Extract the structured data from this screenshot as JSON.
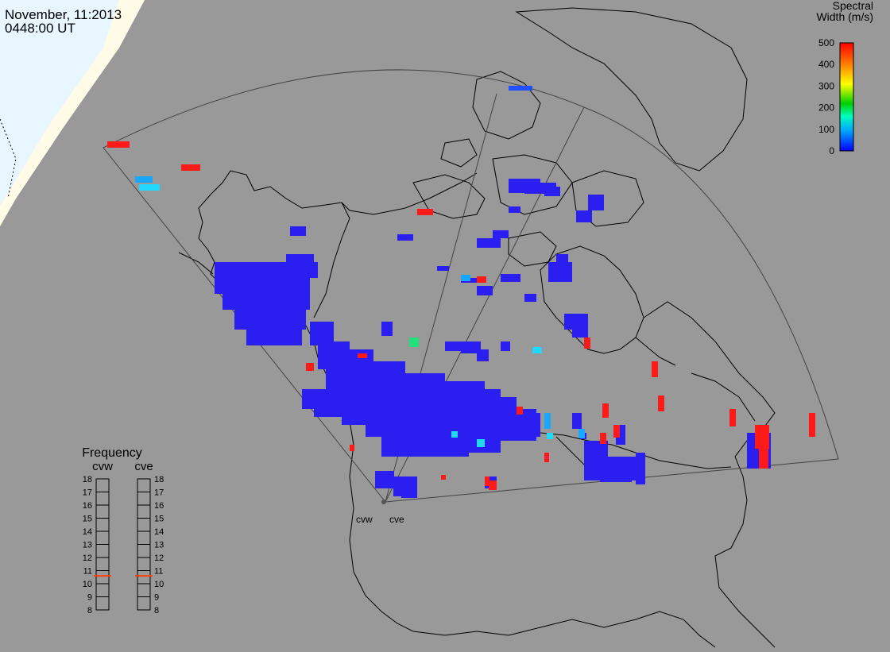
{
  "header": {
    "date": "November, 11:2013",
    "time": "0448:00 UT"
  },
  "colorbar": {
    "title_line1": "Spectral",
    "title_line2": "Width (m/s)",
    "min": 0,
    "max": 500,
    "ticks": [
      "500",
      "400",
      "300",
      "200",
      "100",
      "0"
    ],
    "stops": [
      "#0000ff",
      "#00a0ff",
      "#00ffc0",
      "#00d000",
      "#ffff00",
      "#ff8000",
      "#ff0000"
    ]
  },
  "radars": {
    "site_a": "cvw",
    "site_b": "cve"
  },
  "frequency": {
    "title": "Frequency",
    "col_a": "cvw",
    "col_b": "cve",
    "labels": [
      "18",
      "17",
      "16",
      "15",
      "14",
      "13",
      "12",
      "11",
      "10",
      "9",
      "8"
    ],
    "value_a_mhz": 10.6,
    "value_b_mhz": 10.6,
    "marker_color": "#ff4000"
  },
  "colors": {
    "background": "#999999",
    "night_shade": "#ffffe8",
    "day_zone": "#e8f6ff",
    "coastline": "#000000",
    "fov_outline": "#444444"
  }
}
